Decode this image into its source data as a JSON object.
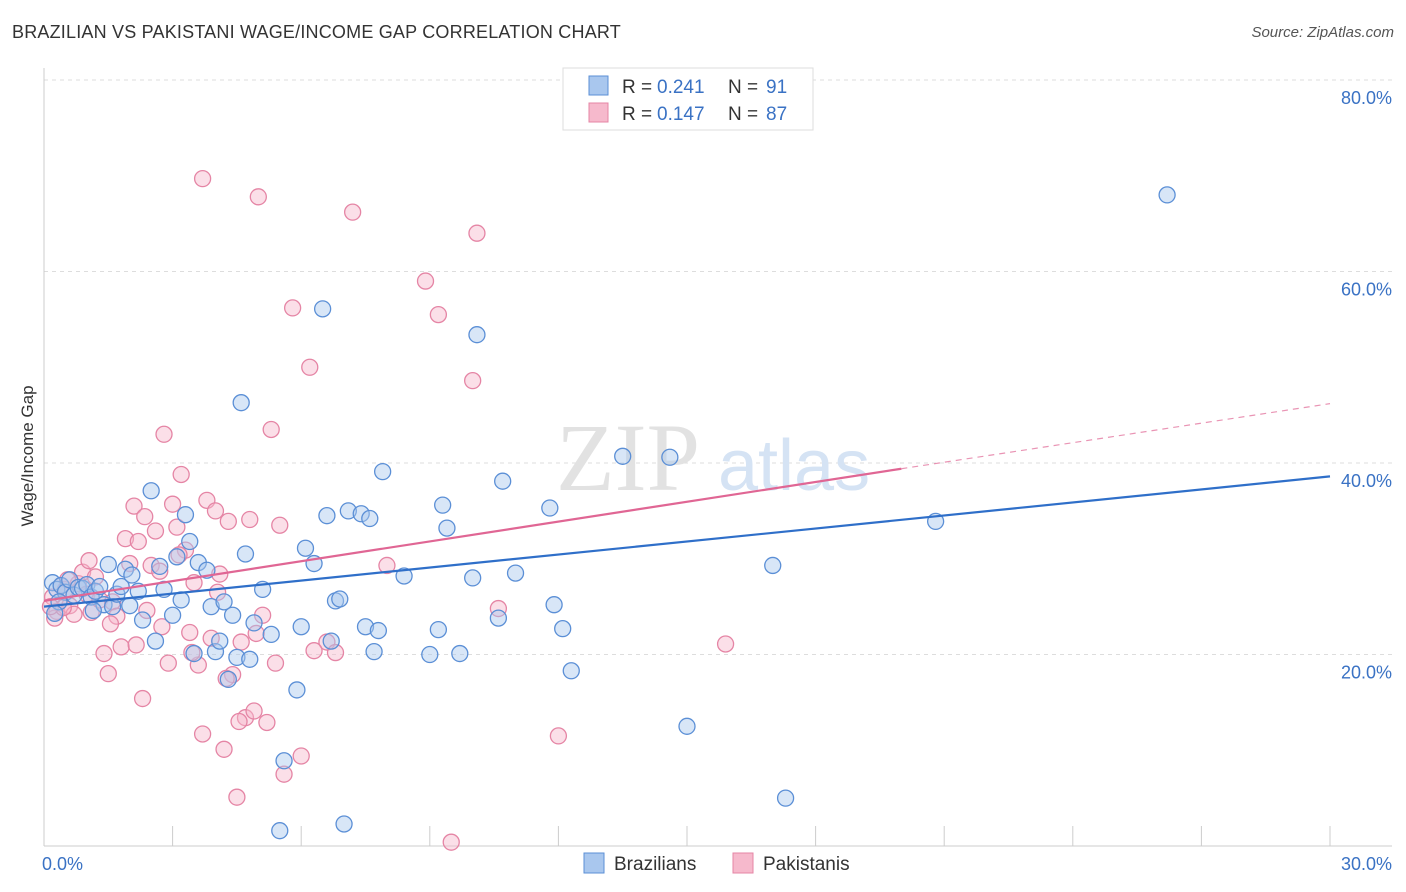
{
  "title": "BRAZILIAN VS PAKISTANI WAGE/INCOME GAP CORRELATION CHART",
  "source": "Source: ZipAtlas.com",
  "watermark": {
    "zip": "ZIP",
    "atlas": "atlas"
  },
  "colors": {
    "blue_fill": "#a9c7ee",
    "blue_stroke": "#5b8fd6",
    "blue_line": "#2f6fc9",
    "pink_fill": "#f6b9cc",
    "pink_stroke": "#e585a5",
    "pink_line": "#e06694",
    "tick_text": "#3a72c4",
    "grid": "#dddddd"
  },
  "legend": {
    "r_label": "R =",
    "n_label": "N =",
    "brazilians": {
      "r": "0.241",
      "n": "91"
    },
    "pakistanis": {
      "r": "0.147",
      "n": "87"
    }
  },
  "chart_data": {
    "type": "scatter",
    "title": "BRAZILIAN VS PAKISTANI WAGE/INCOME GAP CORRELATION CHART",
    "xlabel": "",
    "ylabel": "Wage/Income Gap",
    "xlim": [
      0,
      30
    ],
    "ylim": [
      0,
      80
    ],
    "x_tick_labels": [
      "0.0%",
      "30.0%"
    ],
    "y_ticks": [
      20,
      40,
      60,
      80
    ],
    "y_tick_labels": [
      "20.0%",
      "40.0%",
      "60.0%",
      "80.0%"
    ],
    "grid": true,
    "legend_position": "top-center",
    "series": [
      {
        "name": "Brazilians",
        "r": 0.241,
        "n": 91,
        "trend": {
          "x0": 0,
          "y0": 25.0,
          "x1": 30,
          "y1": 38.6,
          "dashed_from": null
        },
        "points": [
          [
            0.2,
            27.5
          ],
          [
            0.3,
            26.8
          ],
          [
            0.4,
            27.2
          ],
          [
            0.5,
            26.5
          ],
          [
            0.6,
            27.8
          ],
          [
            0.7,
            26.2
          ],
          [
            0.8,
            27.0
          ],
          [
            0.9,
            26.9
          ],
          [
            1.0,
            27.3
          ],
          [
            1.1,
            26.0
          ],
          [
            1.2,
            26.6
          ],
          [
            1.3,
            27.1
          ],
          [
            1.4,
            25.2
          ],
          [
            1.5,
            29.4
          ],
          [
            1.6,
            25.0
          ],
          [
            1.7,
            26.3
          ],
          [
            1.8,
            27.1
          ],
          [
            1.9,
            28.9
          ],
          [
            2.0,
            25.1
          ],
          [
            2.2,
            26.6
          ],
          [
            2.3,
            23.6
          ],
          [
            2.5,
            37.1
          ],
          [
            2.6,
            21.4
          ],
          [
            2.7,
            29.2
          ],
          [
            2.8,
            26.8
          ],
          [
            3.0,
            24.1
          ],
          [
            3.1,
            30.2
          ],
          [
            3.2,
            25.7
          ],
          [
            3.3,
            34.6
          ],
          [
            3.4,
            31.8
          ],
          [
            3.5,
            20.1
          ],
          [
            3.6,
            29.6
          ],
          [
            3.8,
            28.8
          ],
          [
            3.9,
            25.0
          ],
          [
            4.0,
            20.3
          ],
          [
            4.1,
            21.4
          ],
          [
            4.2,
            25.5
          ],
          [
            4.3,
            17.4
          ],
          [
            4.4,
            24.1
          ],
          [
            4.5,
            19.7
          ],
          [
            4.6,
            46.3
          ],
          [
            4.7,
            30.5
          ],
          [
            4.8,
            19.5
          ],
          [
            4.9,
            23.3
          ],
          [
            5.1,
            26.8
          ],
          [
            5.3,
            22.1
          ],
          [
            5.5,
            1.6
          ],
          [
            5.6,
            8.9
          ],
          [
            5.9,
            16.3
          ],
          [
            6.0,
            22.9
          ],
          [
            6.1,
            31.1
          ],
          [
            6.3,
            29.5
          ],
          [
            6.5,
            56.1
          ],
          [
            6.6,
            34.5
          ],
          [
            6.7,
            21.4
          ],
          [
            6.8,
            25.6
          ],
          [
            6.9,
            25.8
          ],
          [
            7.0,
            2.3
          ],
          [
            7.1,
            35.0
          ],
          [
            7.4,
            34.7
          ],
          [
            7.5,
            22.9
          ],
          [
            7.6,
            34.2
          ],
          [
            7.7,
            20.3
          ],
          [
            7.8,
            22.5
          ],
          [
            7.9,
            39.1
          ],
          [
            8.4,
            28.2
          ],
          [
            9.0,
            20.0
          ],
          [
            9.2,
            22.6
          ],
          [
            9.3,
            35.6
          ],
          [
            9.4,
            33.2
          ],
          [
            9.7,
            20.1
          ],
          [
            10.0,
            28.0
          ],
          [
            10.1,
            53.4
          ],
          [
            10.6,
            23.8
          ],
          [
            10.7,
            38.1
          ],
          [
            11.0,
            28.5
          ],
          [
            11.8,
            35.3
          ],
          [
            11.9,
            25.2
          ],
          [
            12.1,
            22.7
          ],
          [
            12.3,
            18.3
          ],
          [
            13.5,
            40.7
          ],
          [
            14.6,
            40.6
          ],
          [
            15.0,
            12.5
          ],
          [
            17.0,
            29.3
          ],
          [
            17.3,
            5.0
          ],
          [
            20.8,
            33.9
          ],
          [
            26.2,
            68.0
          ],
          [
            0.35,
            25.5
          ],
          [
            1.15,
            24.6
          ],
          [
            2.05,
            28.3
          ],
          [
            0.25,
            24.3
          ]
        ]
      },
      {
        "name": "Pakistanis",
        "r": 0.147,
        "n": 87,
        "trend": {
          "x0": 0,
          "y0": 25.6,
          "x1": 20.0,
          "y1": 39.4,
          "dashed_from": 20.0,
          "dashed_x1": 30,
          "dashed_y1": 46.2
        },
        "points": [
          [
            0.2,
            26.0
          ],
          [
            0.3,
            24.5
          ],
          [
            0.4,
            27.2
          ],
          [
            0.5,
            26.8
          ],
          [
            0.6,
            25.1
          ],
          [
            0.7,
            24.2
          ],
          [
            0.8,
            27.4
          ],
          [
            0.9,
            28.6
          ],
          [
            1.0,
            26.3
          ],
          [
            1.1,
            24.4
          ],
          [
            1.2,
            28.1
          ],
          [
            1.3,
            25.7
          ],
          [
            1.4,
            20.1
          ],
          [
            1.5,
            18.0
          ],
          [
            1.6,
            25.5
          ],
          [
            1.7,
            24.0
          ],
          [
            1.8,
            20.8
          ],
          [
            1.9,
            32.1
          ],
          [
            2.0,
            29.5
          ],
          [
            2.1,
            35.5
          ],
          [
            2.2,
            31.8
          ],
          [
            2.3,
            15.4
          ],
          [
            2.4,
            24.6
          ],
          [
            2.5,
            29.3
          ],
          [
            2.6,
            32.9
          ],
          [
            2.7,
            28.7
          ],
          [
            2.8,
            43.0
          ],
          [
            2.9,
            19.1
          ],
          [
            3.0,
            35.7
          ],
          [
            3.1,
            33.3
          ],
          [
            3.2,
            38.8
          ],
          [
            3.3,
            30.9
          ],
          [
            3.4,
            22.3
          ],
          [
            3.5,
            27.5
          ],
          [
            3.6,
            18.9
          ],
          [
            3.7,
            11.7
          ],
          [
            3.8,
            36.1
          ],
          [
            3.9,
            21.7
          ],
          [
            4.0,
            35.0
          ],
          [
            4.1,
            28.4
          ],
          [
            4.2,
            10.1
          ],
          [
            4.3,
            33.9
          ],
          [
            4.4,
            17.9
          ],
          [
            4.5,
            5.1
          ],
          [
            4.6,
            21.3
          ],
          [
            4.7,
            13.4
          ],
          [
            4.8,
            34.1
          ],
          [
            4.9,
            14.1
          ],
          [
            5.0,
            67.8
          ],
          [
            5.1,
            24.1
          ],
          [
            5.2,
            12.9
          ],
          [
            5.3,
            43.5
          ],
          [
            5.4,
            19.1
          ],
          [
            5.5,
            33.5
          ],
          [
            5.6,
            7.5
          ],
          [
            5.8,
            56.2
          ],
          [
            6.0,
            9.4
          ],
          [
            6.2,
            50.0
          ],
          [
            6.6,
            21.3
          ],
          [
            6.8,
            20.2
          ],
          [
            7.2,
            66.2
          ],
          [
            8.0,
            29.3
          ],
          [
            8.9,
            59.0
          ],
          [
            9.2,
            55.5
          ],
          [
            9.5,
            0.4
          ],
          [
            10.0,
            48.6
          ],
          [
            10.1,
            64.0
          ],
          [
            10.6,
            24.8
          ],
          [
            12.0,
            11.5
          ],
          [
            15.9,
            21.1
          ],
          [
            3.7,
            69.7
          ],
          [
            0.25,
            23.8
          ],
          [
            0.45,
            24.9
          ],
          [
            1.05,
            29.8
          ],
          [
            1.55,
            23.2
          ],
          [
            2.15,
            21.0
          ],
          [
            2.35,
            34.4
          ],
          [
            2.75,
            22.9
          ],
          [
            3.15,
            30.4
          ],
          [
            3.45,
            20.2
          ],
          [
            4.05,
            26.5
          ],
          [
            4.25,
            17.5
          ],
          [
            4.55,
            13.0
          ],
          [
            4.95,
            22.2
          ],
          [
            6.3,
            20.4
          ],
          [
            0.15,
            25.0
          ],
          [
            0.55,
            27.8
          ]
        ]
      }
    ]
  },
  "bottom_legend": [
    "Brazilians",
    "Pakistanis"
  ]
}
